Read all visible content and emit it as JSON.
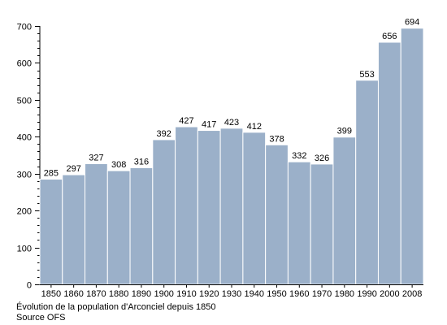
{
  "chart_data": {
    "type": "bar",
    "categories": [
      "1850",
      "1860",
      "1870",
      "1880",
      "1890",
      "1900",
      "1910",
      "1920",
      "1930",
      "1940",
      "1950",
      "1960",
      "1970",
      "1980",
      "1990",
      "2000",
      "2008"
    ],
    "values": [
      285,
      297,
      327,
      308,
      316,
      392,
      427,
      417,
      423,
      412,
      378,
      332,
      326,
      399,
      553,
      656,
      694
    ],
    "ylim": [
      0,
      700
    ],
    "yticks": [
      0,
      100,
      200,
      300,
      400,
      500,
      600,
      700
    ],
    "grid": false,
    "data_labels": true,
    "bar_color": "#9bb0c9",
    "bar_edge_color": "#ffffff",
    "caption": "Évolution de la population d'Arconciel depuis 1850",
    "source": "Source OFS"
  }
}
